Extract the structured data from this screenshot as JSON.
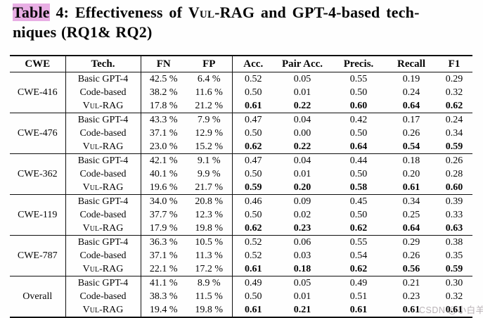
{
  "colors": {
    "title_highlight": "#e8aee4",
    "watermark": "#b9b2b6"
  },
  "title": {
    "segments": [
      {
        "text": "Table"
      },
      {
        "text": " 4: Effectiveness of "
      },
      {
        "text": "Vul-RAG"
      },
      {
        "text": " and GPT-4-based tech-"
      },
      {
        "text": "niques (RQ1& RQ2)"
      }
    ]
  },
  "watermark": {
    "text": "CSDN @小白羊 |"
  },
  "table": {
    "headers": [
      "CWE",
      "Tech.",
      "FN",
      "FP",
      "Acc.",
      "Pair Acc.",
      "Precis.",
      "Recall",
      "F1"
    ],
    "groups": [
      {
        "cwe": "CWE-416",
        "rows": [
          {
            "tech": "Basic GPT-4",
            "smallcaps_tech": false,
            "best": false,
            "fn": "42.5 %",
            "fp": "6.4 %",
            "acc": "0.52",
            "pair_acc": "0.05",
            "precis": "0.55",
            "recall": "0.19",
            "f1": "0.29"
          },
          {
            "tech": "Code-based",
            "smallcaps_tech": false,
            "best": false,
            "fn": "38.2 %",
            "fp": "11.6 %",
            "acc": "0.50",
            "pair_acc": "0.01",
            "precis": "0.50",
            "recall": "0.24",
            "f1": "0.32"
          },
          {
            "tech": "Vul-RAG",
            "smallcaps_tech": true,
            "best": true,
            "fn": "17.8 %",
            "fp": "21.2 %",
            "acc": "0.61",
            "pair_acc": "0.22",
            "precis": "0.60",
            "recall": "0.64",
            "f1": "0.62"
          }
        ]
      },
      {
        "cwe": "CWE-476",
        "rows": [
          {
            "tech": "Basic GPT-4",
            "smallcaps_tech": false,
            "best": false,
            "fn": "43.3 %",
            "fp": "7.9 %",
            "acc": "0.47",
            "pair_acc": "0.04",
            "precis": "0.42",
            "recall": "0.17",
            "f1": "0.24"
          },
          {
            "tech": "Code-based",
            "smallcaps_tech": false,
            "best": false,
            "fn": "37.1 %",
            "fp": "12.9 %",
            "acc": "0.50",
            "pair_acc": "0.00",
            "precis": "0.50",
            "recall": "0.26",
            "f1": "0.34"
          },
          {
            "tech": "Vul-RAG",
            "smallcaps_tech": true,
            "best": true,
            "fn": "23.0 %",
            "fp": "15.2 %",
            "acc": "0.62",
            "pair_acc": "0.22",
            "precis": "0.64",
            "recall": "0.54",
            "f1": "0.59"
          }
        ]
      },
      {
        "cwe": "CWE-362",
        "rows": [
          {
            "tech": "Basic GPT-4",
            "smallcaps_tech": false,
            "best": false,
            "fn": "42.1 %",
            "fp": "9.1 %",
            "acc": "0.47",
            "pair_acc": "0.04",
            "precis": "0.44",
            "recall": "0.18",
            "f1": "0.26"
          },
          {
            "tech": "Code-based",
            "smallcaps_tech": false,
            "best": false,
            "fn": "40.1 %",
            "fp": "9.9 %",
            "acc": "0.50",
            "pair_acc": "0.01",
            "precis": "0.50",
            "recall": "0.20",
            "f1": "0.28"
          },
          {
            "tech": "Vul-RAG",
            "smallcaps_tech": true,
            "best": true,
            "fn": "19.6 %",
            "fp": "21.7 %",
            "acc": "0.59",
            "pair_acc": "0.20",
            "precis": "0.58",
            "recall": "0.61",
            "f1": "0.60"
          }
        ]
      },
      {
        "cwe": "CWE-119",
        "rows": [
          {
            "tech": "Basic GPT-4",
            "smallcaps_tech": false,
            "best": false,
            "fn": "34.0 %",
            "fp": "20.8 %",
            "acc": "0.46",
            "pair_acc": "0.09",
            "precis": "0.45",
            "recall": "0.34",
            "f1": "0.39"
          },
          {
            "tech": "Code-based",
            "smallcaps_tech": false,
            "best": false,
            "fn": "37.7 %",
            "fp": "12.3 %",
            "acc": "0.50",
            "pair_acc": "0.02",
            "precis": "0.50",
            "recall": "0.25",
            "f1": "0.33"
          },
          {
            "tech": "Vul-RAG",
            "smallcaps_tech": true,
            "best": true,
            "fn": "17.9 %",
            "fp": "19.8 %",
            "acc": "0.62",
            "pair_acc": "0.23",
            "precis": "0.62",
            "recall": "0.64",
            "f1": "0.63"
          }
        ]
      },
      {
        "cwe": "CWE-787",
        "rows": [
          {
            "tech": "Basic GPT-4",
            "smallcaps_tech": false,
            "best": false,
            "fn": "36.3 %",
            "fp": "10.5 %",
            "acc": "0.52",
            "pair_acc": "0.06",
            "precis": "0.55",
            "recall": "0.29",
            "f1": "0.38"
          },
          {
            "tech": "Code-based",
            "smallcaps_tech": false,
            "best": false,
            "fn": "37.1 %",
            "fp": "11.3 %",
            "acc": "0.52",
            "pair_acc": "0.03",
            "precis": "0.54",
            "recall": "0.26",
            "f1": "0.35"
          },
          {
            "tech": "Vul-RAG",
            "smallcaps_tech": true,
            "best": true,
            "fn": "22.1 %",
            "fp": "17.2 %",
            "acc": "0.61",
            "pair_acc": "0.18",
            "precis": "0.62",
            "recall": "0.56",
            "f1": "0.59"
          }
        ]
      },
      {
        "cwe": "Overall",
        "rows": [
          {
            "tech": "Basic GPT-4",
            "smallcaps_tech": false,
            "best": false,
            "fn": "41.1 %",
            "fp": "8.9 %",
            "acc": "0.49",
            "pair_acc": "0.05",
            "precis": "0.49",
            "recall": "0.21",
            "f1": "0.30"
          },
          {
            "tech": "Code-based",
            "smallcaps_tech": false,
            "best": false,
            "fn": "38.3 %",
            "fp": "11.5 %",
            "acc": "0.50",
            "pair_acc": "0.01",
            "precis": "0.51",
            "recall": "0.23",
            "f1": "0.32"
          },
          {
            "tech": "Vul-RAG",
            "smallcaps_tech": true,
            "best": true,
            "fn": "19.4 %",
            "fp": "19.8 %",
            "acc": "0.61",
            "pair_acc": "0.21",
            "precis": "0.61",
            "recall": "0.61",
            "f1": "0.61"
          }
        ]
      }
    ]
  }
}
